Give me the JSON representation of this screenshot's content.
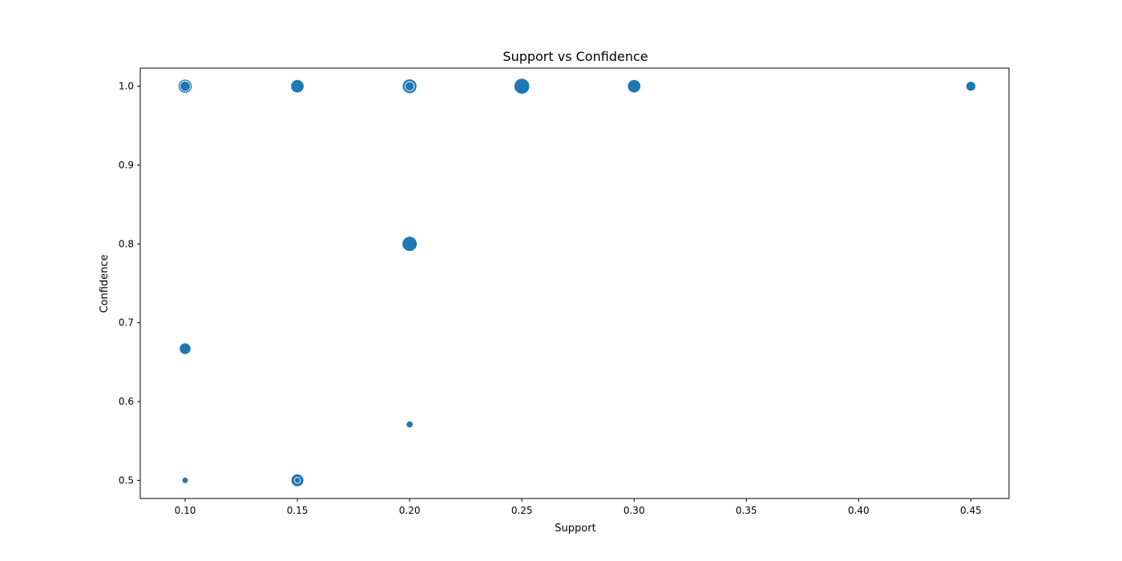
{
  "chart_data": {
    "type": "scatter",
    "title": "Support vs Confidence",
    "xlabel": "Support",
    "ylabel": "Confidence",
    "xlim": [
      0.08,
      0.467
    ],
    "ylim": [
      0.477,
      1.023
    ],
    "xticks": [
      "0.10",
      "0.15",
      "0.20",
      "0.25",
      "0.30",
      "0.35",
      "0.40",
      "0.45"
    ],
    "yticks": [
      "0.5",
      "0.6",
      "0.7",
      "0.8",
      "0.9",
      "1.0"
    ],
    "grid": false,
    "legend": "none",
    "marker_color": "#1f77b4",
    "edge_color": "#ffffff",
    "size_encoding": "relative marker size (0-1)",
    "points": [
      {
        "x": 0.1,
        "y": 1.0,
        "size": 0.75
      },
      {
        "x": 0.1,
        "y": 1.0,
        "size": 0.45
      },
      {
        "x": 0.1,
        "y": 0.667,
        "size": 0.55
      },
      {
        "x": 0.1,
        "y": 0.5,
        "size": 0.1
      },
      {
        "x": 0.15,
        "y": 1.0,
        "size": 0.7
      },
      {
        "x": 0.15,
        "y": 0.5,
        "size": 0.65
      },
      {
        "x": 0.15,
        "y": 0.5,
        "size": 0.08
      },
      {
        "x": 0.2,
        "y": 1.0,
        "size": 0.8
      },
      {
        "x": 0.2,
        "y": 1.0,
        "size": 0.35
      },
      {
        "x": 0.2,
        "y": 0.8,
        "size": 0.85
      },
      {
        "x": 0.2,
        "y": 0.571,
        "size": 0.15
      },
      {
        "x": 0.25,
        "y": 1.0,
        "size": 0.9
      },
      {
        "x": 0.3,
        "y": 1.0,
        "size": 0.7
      },
      {
        "x": 0.45,
        "y": 1.0,
        "size": 0.4
      }
    ]
  }
}
